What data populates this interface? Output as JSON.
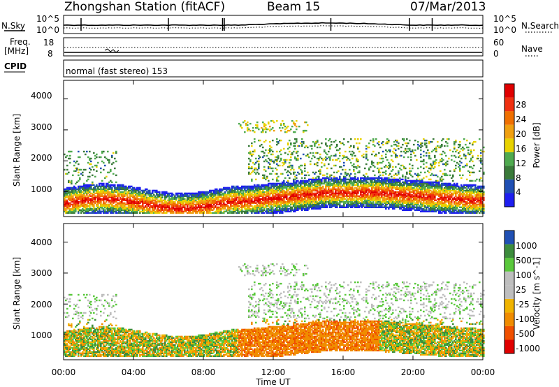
{
  "header": {
    "station": "Zhongshan Station (fitACF)",
    "beam": "Beam 15",
    "date": "07/Mar/2013"
  },
  "noise_panel": {
    "left_label": "N.Sky",
    "right_label": "N.Search",
    "left_ticks": [
      "10^5",
      "10^0"
    ],
    "right_ticks": [
      "10^5",
      "10^0"
    ]
  },
  "freq_panel": {
    "left_label_1": "Freq.",
    "left_label_2": "[MHz]",
    "right_label": "Nave",
    "left_ticks": [
      "18",
      "8"
    ],
    "right_ticks": [
      "60",
      "0"
    ]
  },
  "cpid_panel": {
    "label": "CPID",
    "text": "normal (fast stereo) 153"
  },
  "colors": {
    "power_scale": [
      "#1e1ef0",
      "#2050b4",
      "#3a7a3a",
      "#4faa4f",
      "#e8d200",
      "#f0a010",
      "#f07000",
      "#f03010",
      "#e00000"
    ],
    "velocity_scale": [
      "#e00000",
      "#f05000",
      "#f08c00",
      "#f0b400",
      "#bebebe",
      "#bebebe",
      "#5ac83c",
      "#3c8c3c",
      "#2050b4"
    ]
  },
  "chart_data": [
    {
      "type": "heatmap",
      "name": "power",
      "ylabel": "Slant Range [km]",
      "yticks": [
        "1000",
        "2000",
        "3000",
        "4000"
      ],
      "ylim": [
        200,
        4600
      ],
      "xlabel": "Time UT",
      "xticks": [
        "00:00",
        "04:00",
        "08:00",
        "12:00",
        "16:00",
        "20:00",
        "00:00"
      ],
      "xlim": [
        0,
        24
      ],
      "colorbar_label": "Power [dB]",
      "colorbar_ticks": [
        "4",
        "8",
        "12",
        "16",
        "20",
        "24",
        "28"
      ],
      "colorbar_range": [
        0,
        30
      ]
    },
    {
      "type": "heatmap",
      "name": "velocity",
      "ylabel": "Slant Range [km]",
      "yticks": [
        "1000",
        "2000",
        "3000",
        "4000"
      ],
      "ylim": [
        200,
        4600
      ],
      "xlabel": "Time UT",
      "xticks": [
        "00:00",
        "04:00",
        "08:00",
        "12:00",
        "16:00",
        "20:00",
        "00:00"
      ],
      "xlim": [
        0,
        24
      ],
      "colorbar_label": "Velocity [m s^-1]",
      "colorbar_ticks": [
        "1000",
        "500",
        "100",
        "25",
        "-25",
        "-100",
        "-500",
        "-1000"
      ]
    }
  ]
}
